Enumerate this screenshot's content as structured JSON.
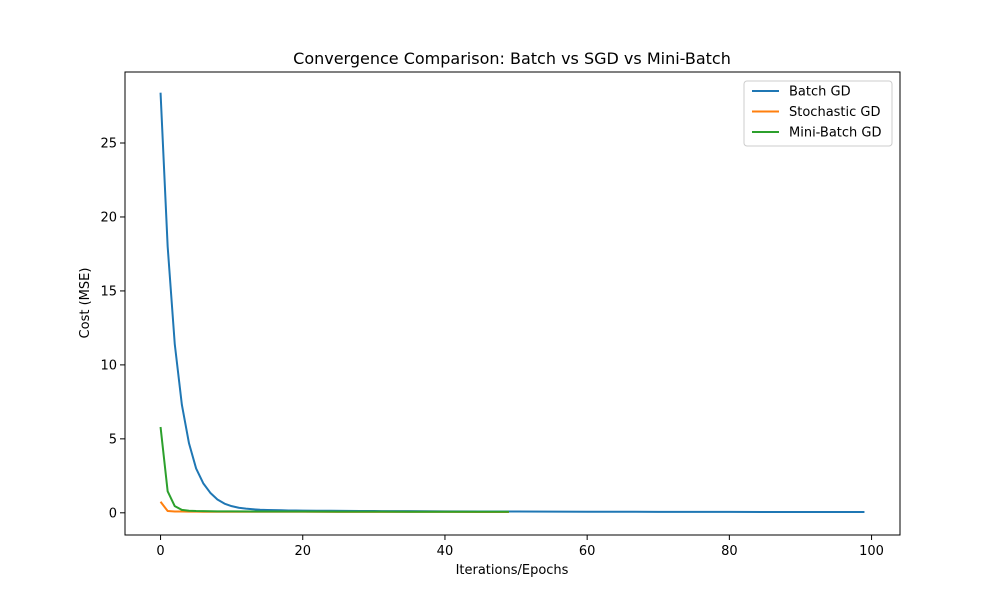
{
  "chart_data": {
    "type": "line",
    "title": "Convergence Comparison: Batch vs SGD vs Mini-Batch",
    "xlabel": "Iterations/Epochs",
    "ylabel": "Cost (MSE)",
    "xlim": [
      -5,
      104
    ],
    "ylim": [
      -1.5,
      29.8
    ],
    "xticks": [
      0,
      20,
      40,
      60,
      80,
      100
    ],
    "yticks": [
      0,
      5,
      10,
      15,
      20,
      25
    ],
    "grid": false,
    "legend_position": "top-right",
    "series": [
      {
        "name": "Batch GD",
        "color": "#1f77b4",
        "x": [
          0,
          1,
          2,
          3,
          4,
          5,
          6,
          7,
          8,
          9,
          10,
          11,
          12,
          13,
          14,
          15,
          16,
          17,
          18,
          19,
          20,
          22,
          24,
          26,
          28,
          30,
          35,
          40,
          45,
          50,
          55,
          60,
          65,
          70,
          75,
          80,
          85,
          90,
          95,
          99
        ],
        "y": [
          28.4,
          18.0,
          11.4,
          7.3,
          4.7,
          3.0,
          2.0,
          1.35,
          0.9,
          0.62,
          0.45,
          0.34,
          0.28,
          0.24,
          0.21,
          0.19,
          0.18,
          0.17,
          0.16,
          0.155,
          0.15,
          0.14,
          0.135,
          0.13,
          0.125,
          0.12,
          0.11,
          0.1,
          0.09,
          0.085,
          0.08,
          0.075,
          0.07,
          0.066,
          0.063,
          0.06,
          0.058,
          0.056,
          0.054,
          0.052
        ]
      },
      {
        "name": "Stochastic GD",
        "color": "#ff7f0e",
        "x": [
          0,
          1,
          2,
          3,
          4,
          5,
          6,
          8,
          10,
          15,
          20,
          25,
          30,
          35,
          40,
          45,
          49
        ],
        "y": [
          0.75,
          0.12,
          0.09,
          0.085,
          0.08,
          0.078,
          0.076,
          0.074,
          0.072,
          0.07,
          0.068,
          0.066,
          0.064,
          0.062,
          0.06,
          0.058,
          0.056
        ]
      },
      {
        "name": "Mini-Batch GD",
        "color": "#2ca02c",
        "x": [
          0,
          1,
          2,
          3,
          4,
          5,
          6,
          8,
          10,
          15,
          20,
          25,
          30,
          35,
          40,
          45,
          49
        ],
        "y": [
          5.8,
          1.45,
          0.45,
          0.2,
          0.14,
          0.12,
          0.11,
          0.1,
          0.095,
          0.09,
          0.085,
          0.08,
          0.078,
          0.076,
          0.074,
          0.072,
          0.07
        ]
      }
    ]
  }
}
